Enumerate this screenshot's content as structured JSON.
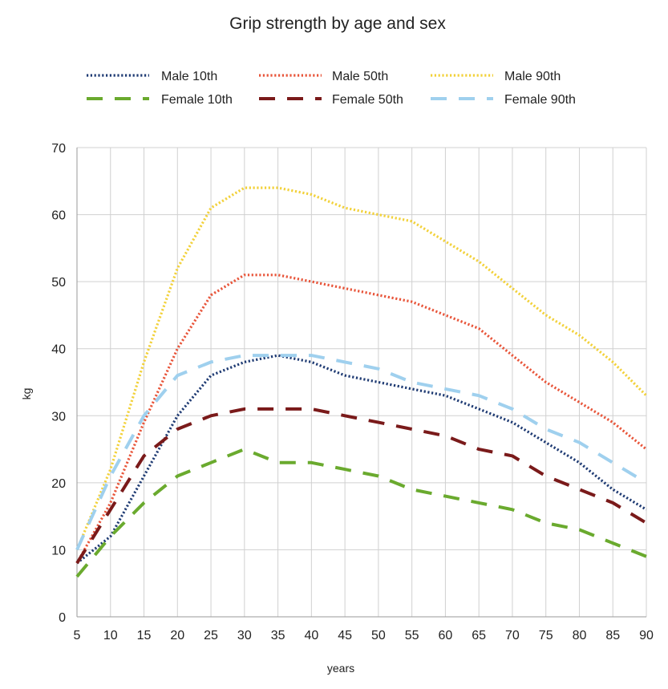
{
  "chart_data": {
    "type": "line",
    "title": "Grip strength by age and sex",
    "xlabel": "years",
    "ylabel": "kg",
    "x": [
      5,
      10,
      15,
      20,
      25,
      30,
      35,
      40,
      45,
      50,
      55,
      60,
      65,
      70,
      75,
      80,
      85,
      90
    ],
    "xlim": [
      5,
      90
    ],
    "ylim": [
      0,
      70
    ],
    "xticks": [
      "5",
      "10",
      "15",
      "20",
      "25",
      "30",
      "35",
      "40",
      "45",
      "50",
      "55",
      "60",
      "65",
      "70",
      "75",
      "80",
      "85",
      "90"
    ],
    "yticks": [
      "0",
      "10",
      "20",
      "30",
      "40",
      "50",
      "60",
      "70"
    ],
    "grid": true,
    "legend_position": "top",
    "series": [
      {
        "name": "Male 10th",
        "color": "#1f3b73",
        "style": "dotted",
        "values": [
          8,
          12,
          21,
          30,
          36,
          38,
          39,
          38,
          36,
          35,
          34,
          33,
          31,
          29,
          26,
          23,
          19,
          16
        ]
      },
      {
        "name": "Male 50th",
        "color": "#e8553a",
        "style": "dotted",
        "values": [
          8,
          17,
          29,
          40,
          48,
          51,
          51,
          50,
          49,
          48,
          47,
          45,
          43,
          39,
          35,
          32,
          29,
          25
        ]
      },
      {
        "name": "Male 90th",
        "color": "#f2d13a",
        "style": "dotted",
        "values": [
          10,
          22,
          38,
          52,
          61,
          64,
          64,
          63,
          61,
          60,
          59,
          56,
          53,
          49,
          45,
          42,
          38,
          33
        ]
      },
      {
        "name": "Female 10th",
        "color": "#6aaa2e",
        "style": "dashed",
        "values": [
          6,
          12,
          17,
          21,
          23,
          25,
          23,
          23,
          22,
          21,
          19,
          18,
          17,
          16,
          14,
          13,
          11,
          9
        ]
      },
      {
        "name": "Female 50th",
        "color": "#7a1a1a",
        "style": "dashed",
        "values": [
          8,
          16,
          24,
          28,
          30,
          31,
          31,
          31,
          30,
          29,
          28,
          27,
          25,
          24,
          21,
          19,
          17,
          14
        ]
      },
      {
        "name": "Female 90th",
        "color": "#9fd0ee",
        "style": "dashed",
        "values": [
          10,
          21,
          30,
          36,
          38,
          39,
          39,
          39,
          38,
          37,
          35,
          34,
          33,
          31,
          28,
          26,
          23,
          20
        ]
      }
    ]
  }
}
